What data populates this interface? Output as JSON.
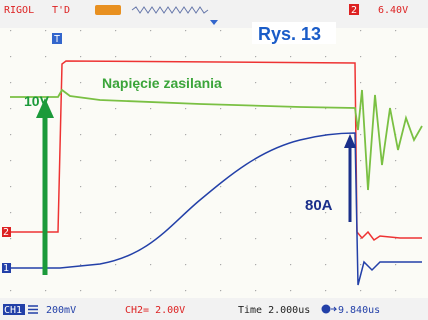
{
  "top_bar": {
    "brand": "RIGOL",
    "status": "T'D",
    "trigger_channel": "2",
    "trigger_level": "6.40V"
  },
  "markers": {
    "trigger": "T",
    "ch2": "2",
    "ch1": "1"
  },
  "annotations": {
    "figure": "Rys. 13",
    "voltage_step": "10V",
    "supply_label": "Napięcie zasilania",
    "current": "80A"
  },
  "bottom_bar": {
    "ch1_label": "CH1",
    "ch1_scale": "200mV",
    "ch2_scale": "CH2= 2.00V",
    "timebase": "Time 2.000us",
    "trigger_offset": "9.840us"
  }
}
